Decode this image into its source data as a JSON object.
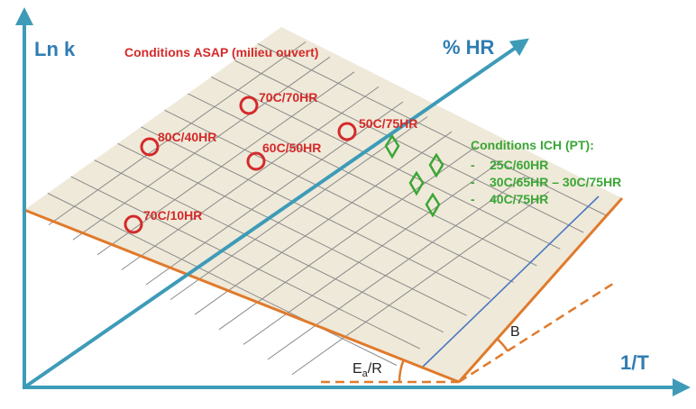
{
  "axes": {
    "y_label": "Ln k",
    "x_label": "1/T",
    "rh_label": "% HR"
  },
  "angles": {
    "ea_main": "E",
    "ea_sub": "a",
    "ea_rest": "/R",
    "b_label": "B"
  },
  "asap": {
    "title": "Conditions ASAP (milieu ouvert)",
    "points": [
      {
        "label": "70C/70HR"
      },
      {
        "label": "80C/40HR"
      },
      {
        "label": "60C/50HR"
      },
      {
        "label": "50C/75HR"
      },
      {
        "label": "70C/10HR"
      }
    ]
  },
  "ich": {
    "title": "Conditions ICH (PT):",
    "items": [
      {
        "bullet": "-",
        "text": "25C/60HR"
      },
      {
        "bullet": "-",
        "text": "30C/65HR – 30C/75HR"
      },
      {
        "bullet": "-",
        "text": "40C/75HR"
      }
    ]
  },
  "colors": {
    "axis": "#3d9bb8",
    "plane_fill": "#efe9d9",
    "plane_edge": "#e07a2c",
    "grid": "#8a8a8a",
    "asap_red": "#d42a2a",
    "ich_green": "#3aa635",
    "blue_line": "#4a78c2"
  }
}
